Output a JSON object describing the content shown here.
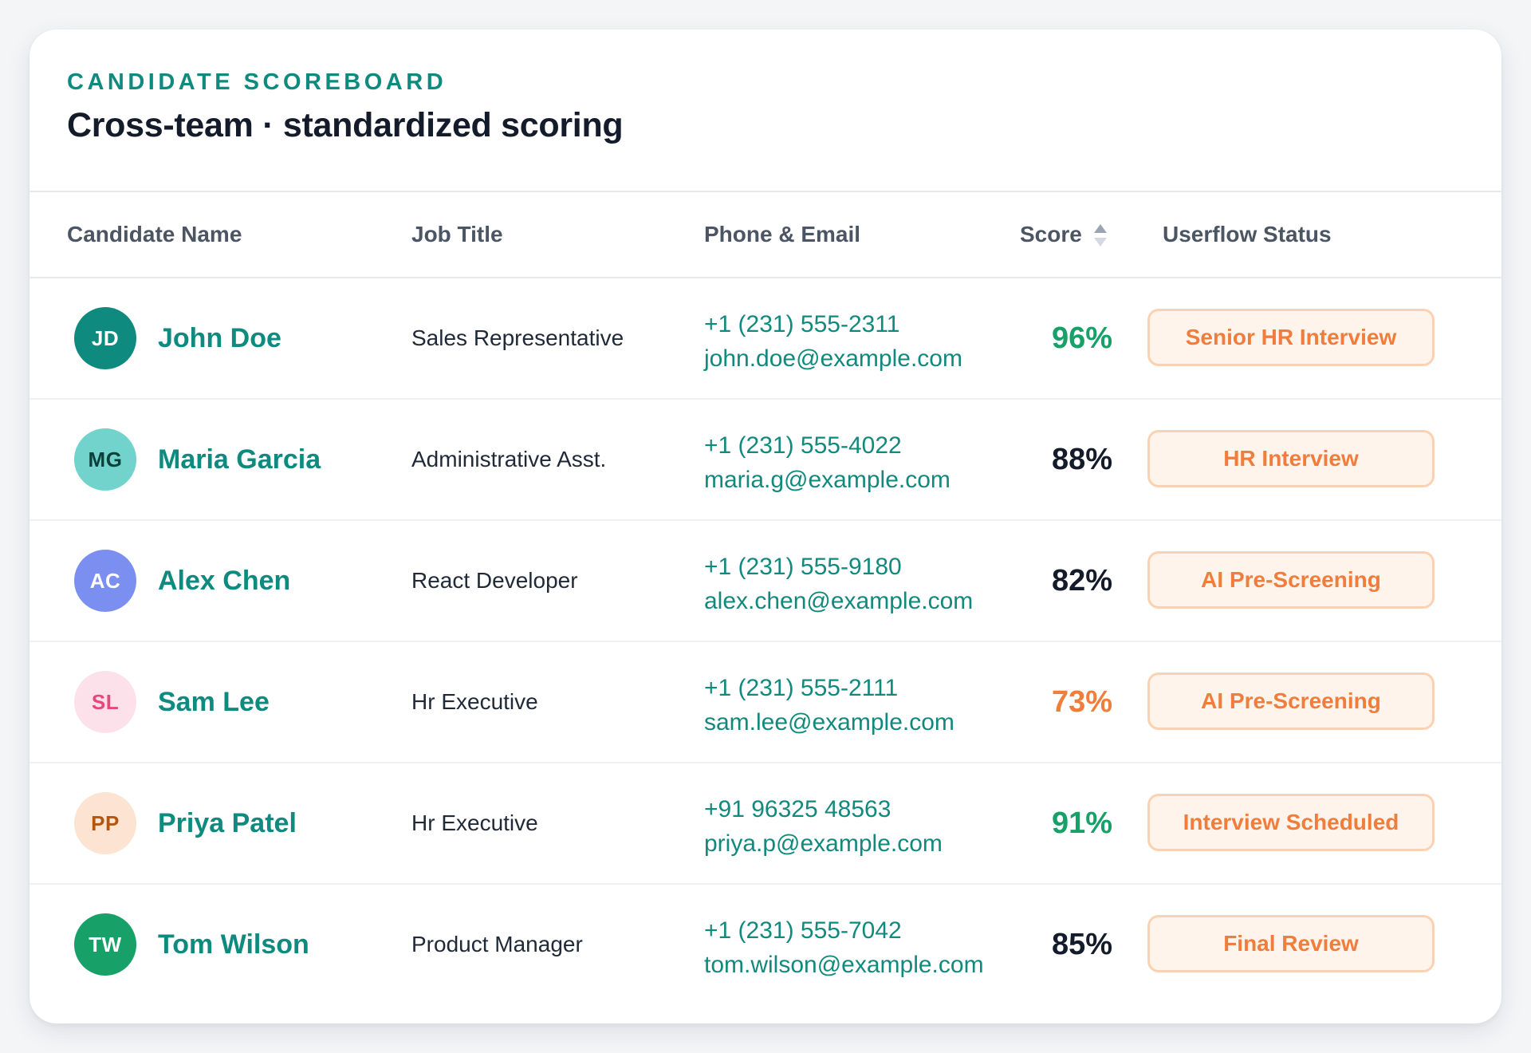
{
  "header": {
    "eyebrow": "CANDIDATE SCOREBOARD",
    "title": "Cross-team · standardized scoring"
  },
  "columns": {
    "name": "Candidate Name",
    "job": "Job Title",
    "contact": "Phone & Email",
    "score": "Score",
    "status": "Userflow Status"
  },
  "colors": {
    "accent": "#0e8a7e",
    "score_high": "#17a067",
    "score_mid": "#141b2b",
    "score_low": "#f07d3b",
    "status_text": "#f07d3b",
    "status_bg": "#fff4ec",
    "status_border": "#fbd1b3"
  },
  "rows": [
    {
      "initials": "JD",
      "avatar_bg": "#0e8a7e",
      "avatar_fg": "#ffffff",
      "name": "John Doe",
      "job": "Sales Representative",
      "phone": "+1 (231) 555-2311",
      "email": "john.doe@example.com",
      "score": "96%",
      "score_color": "#17a067",
      "status": "Senior HR Interview"
    },
    {
      "initials": "MG",
      "avatar_bg": "#71d3cc",
      "avatar_fg": "#0b3f3a",
      "name": "Maria Garcia",
      "job": "Administrative Asst.",
      "phone": "+1 (231) 555-4022",
      "email": "maria.g@example.com",
      "score": "88%",
      "score_color": "#141b2b",
      "status": "HR Interview"
    },
    {
      "initials": "AC",
      "avatar_bg": "#7b8ff0",
      "avatar_fg": "#ffffff",
      "name": "Alex Chen",
      "job": "React Developer",
      "phone": "+1 (231) 555-9180",
      "email": "alex.chen@example.com",
      "score": "82%",
      "score_color": "#141b2b",
      "status": "AI Pre-Screening"
    },
    {
      "initials": "SL",
      "avatar_bg": "#fde1ea",
      "avatar_fg": "#e8467c",
      "name": "Sam Lee",
      "job": "Hr Executive",
      "phone": "+1 (231) 555-2111",
      "email": "sam.lee@example.com",
      "score": "73%",
      "score_color": "#f07d3b",
      "status": "AI Pre-Screening"
    },
    {
      "initials": "PP",
      "avatar_bg": "#fde3d2",
      "avatar_fg": "#b25612",
      "name": "Priya Patel",
      "job": "Hr Executive",
      "phone": "+91 96325 48563",
      "email": "priya.p@example.com",
      "score": "91%",
      "score_color": "#17a067",
      "status": "Interview Scheduled"
    },
    {
      "initials": "TW",
      "avatar_bg": "#17a067",
      "avatar_fg": "#ffffff",
      "name": "Tom Wilson",
      "job": "Product Manager",
      "phone": "+1 (231) 555-7042",
      "email": "tom.wilson@example.com",
      "score": "85%",
      "score_color": "#141b2b",
      "status": "Final Review"
    }
  ]
}
